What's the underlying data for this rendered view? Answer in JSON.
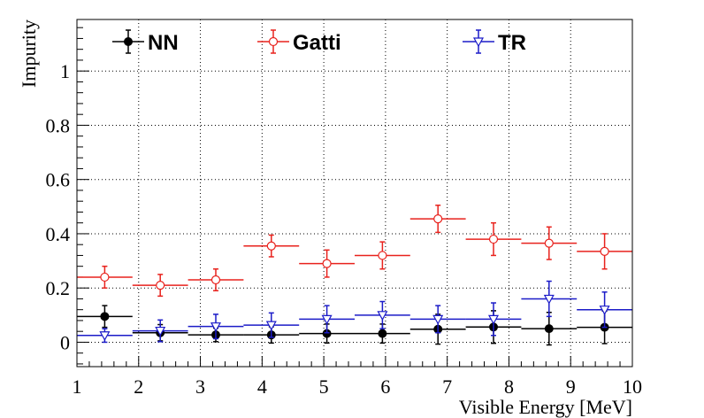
{
  "chart_data": {
    "type": "scatter",
    "title": "",
    "xlabel": "Visible Energy [MeV]",
    "ylabel": "Impurity",
    "xlim": [
      1,
      10
    ],
    "ylim": [
      -0.09,
      1.19
    ],
    "grid": true,
    "legend_position": "top",
    "x_ticks": [
      1,
      2,
      3,
      4,
      5,
      6,
      7,
      8,
      9,
      10
    ],
    "x_tick_labels": [
      "1",
      "2",
      "3",
      "4",
      "5",
      "6",
      "7",
      "8",
      "9",
      "10"
    ],
    "y_ticks": [
      0,
      0.2,
      0.4,
      0.6,
      0.8,
      1
    ],
    "y_tick_labels": [
      "0",
      "0.2",
      "0.4",
      "0.6",
      "0.8",
      "1"
    ],
    "bin_centers": [
      1.45,
      2.35,
      3.25,
      4.15,
      5.05,
      5.95,
      6.85,
      7.75,
      8.65,
      9.55
    ],
    "bin_half_width": 0.45,
    "series": [
      {
        "name": "NN",
        "color": "#000000",
        "marker": "filled-circle",
        "values": [
          0.095,
          0.035,
          0.027,
          0.027,
          0.032,
          0.032,
          0.048,
          0.056,
          0.05,
          0.055
        ],
        "errors": [
          0.04,
          0.03,
          0.025,
          0.03,
          0.035,
          0.035,
          0.055,
          0.06,
          0.06,
          0.06
        ]
      },
      {
        "name": "Gatti",
        "color": "#e8221d",
        "marker": "open-circle",
        "values": [
          0.24,
          0.21,
          0.23,
          0.355,
          0.29,
          0.32,
          0.455,
          0.38,
          0.365,
          0.335
        ],
        "errors": [
          0.04,
          0.04,
          0.04,
          0.04,
          0.05,
          0.05,
          0.05,
          0.06,
          0.06,
          0.065
        ]
      },
      {
        "name": "TR",
        "color": "#1b1bc8",
        "marker": "open-triangle-down",
        "values": [
          0.025,
          0.042,
          0.058,
          0.063,
          0.085,
          0.1,
          0.085,
          0.085,
          0.16,
          0.12
        ],
        "errors": [
          0.025,
          0.04,
          0.045,
          0.045,
          0.05,
          0.05,
          0.05,
          0.06,
          0.065,
          0.065
        ]
      }
    ]
  }
}
